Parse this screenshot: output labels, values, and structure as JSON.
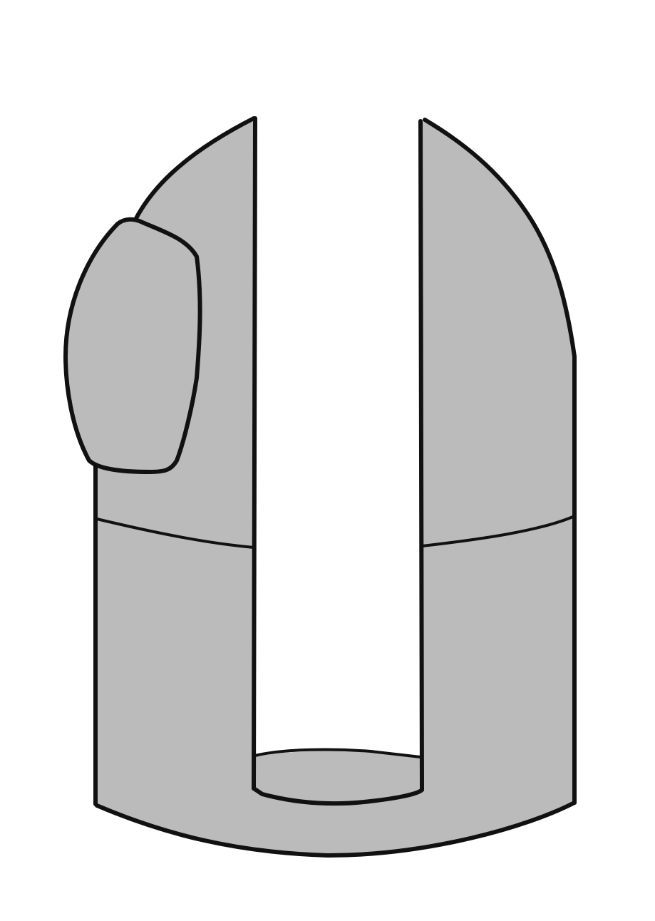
{
  "figure": {
    "subject": "slotted-cylinder-part",
    "colors": {
      "background": "#ffffff",
      "fill": "#bbbbbb",
      "outline": "#111111"
    }
  }
}
